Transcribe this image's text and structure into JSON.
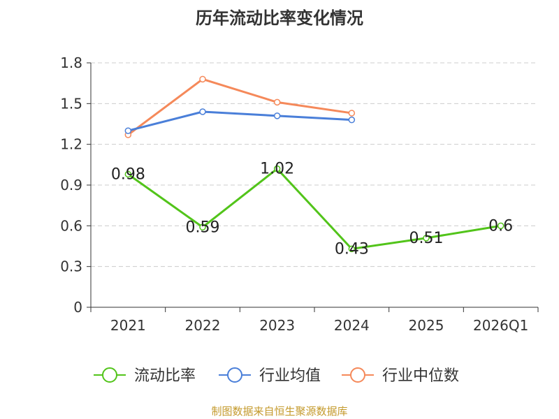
{
  "chart_data": {
    "type": "line",
    "title": "历年流动比率变化情况",
    "categories": [
      "2021",
      "2022",
      "2023",
      "2024",
      "2025",
      "2026Q1"
    ],
    "ylim": [
      0,
      1.8
    ],
    "yticks": [
      "0",
      "0.3",
      "0.6",
      "0.9",
      "1.2",
      "1.5",
      "1.8"
    ],
    "grid": true,
    "legend_position": "bottom",
    "series": [
      {
        "name": "流动比率",
        "color": "#52c41a",
        "values": [
          0.98,
          0.59,
          1.02,
          0.43,
          0.51,
          0.6
        ],
        "labels": [
          "0.98",
          "0.59",
          "1.02",
          "0.43",
          "0.51",
          "0.6"
        ]
      },
      {
        "name": "行业均值",
        "color": "#4a7fd9",
        "values": [
          1.3,
          1.44,
          1.41,
          1.38,
          null,
          null
        ]
      },
      {
        "name": "行业中位数",
        "color": "#f5895a",
        "values": [
          1.27,
          1.68,
          1.51,
          1.43,
          null,
          null
        ]
      }
    ]
  },
  "source": "制图数据来自恒生聚源数据库"
}
